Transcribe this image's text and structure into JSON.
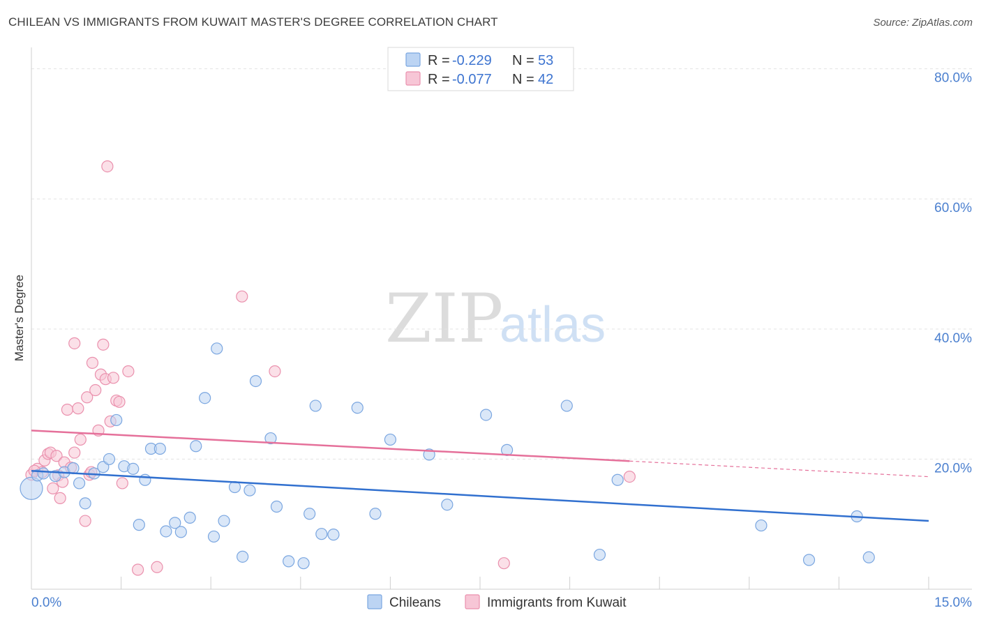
{
  "header": {
    "title": "CHILEAN VS IMMIGRANTS FROM KUWAIT MASTER'S DEGREE CORRELATION CHART",
    "source": "Source: ZipAtlas.com"
  },
  "watermark": {
    "zip": "ZIP",
    "atlas": "atlas"
  },
  "colors": {
    "blue_fill": "#bcd4f3",
    "blue_stroke": "#7aa6e0",
    "blue_line": "#3170cf",
    "pink_fill": "#f7c6d6",
    "pink_stroke": "#ea90ad",
    "pink_line": "#e5709a",
    "grid": "#e3e3e3",
    "axis_label": "#4a7fcf"
  },
  "legend": {
    "rows": [
      {
        "r_label": "R =",
        "r_value": "-0.229",
        "n_label": "N =",
        "n_value": "53"
      },
      {
        "r_label": "R =",
        "r_value": "-0.077",
        "n_label": "N =",
        "n_value": "42"
      }
    ]
  },
  "chart_data": {
    "type": "scatter",
    "title": "CHILEAN VS IMMIGRANTS FROM KUWAIT MASTER'S DEGREE CORRELATION CHART",
    "xlabel": "",
    "ylabel": "Master's Degree",
    "xlim": [
      0,
      15
    ],
    "ylim": [
      0,
      82
    ],
    "x_tick_labels": [
      "0.0%",
      "15.0%"
    ],
    "y_ticks": [
      20,
      40,
      60,
      80
    ],
    "y_tick_labels": [
      "20.0%",
      "40.0%",
      "60.0%",
      "80.0%"
    ],
    "grid": true,
    "series": [
      {
        "name": "Chileans",
        "R": -0.229,
        "N": 53,
        "trend": {
          "x": [
            0,
            15
          ],
          "y": [
            18.2,
            10.5
          ]
        },
        "points": [
          [
            0.0,
            15.5
          ],
          [
            0.1,
            17.5
          ],
          [
            0.2,
            17.8
          ],
          [
            0.4,
            17.4
          ],
          [
            0.55,
            18.0
          ],
          [
            0.7,
            18.6
          ],
          [
            0.8,
            16.3
          ],
          [
            0.9,
            13.2
          ],
          [
            1.05,
            17.8
          ],
          [
            1.2,
            18.8
          ],
          [
            1.3,
            20.0
          ],
          [
            1.42,
            26.0
          ],
          [
            1.55,
            18.9
          ],
          [
            1.7,
            18.5
          ],
          [
            1.8,
            9.9
          ],
          [
            1.9,
            16.8
          ],
          [
            2.0,
            21.6
          ],
          [
            2.15,
            21.6
          ],
          [
            2.25,
            8.9
          ],
          [
            2.4,
            10.2
          ],
          [
            2.5,
            8.8
          ],
          [
            2.65,
            11.0
          ],
          [
            2.75,
            22.0
          ],
          [
            2.9,
            29.4
          ],
          [
            3.05,
            8.1
          ],
          [
            3.1,
            37.0
          ],
          [
            3.22,
            10.5
          ],
          [
            3.4,
            15.7
          ],
          [
            3.53,
            5.0
          ],
          [
            3.65,
            15.2
          ],
          [
            3.75,
            32.0
          ],
          [
            4.0,
            23.2
          ],
          [
            4.1,
            12.7
          ],
          [
            4.3,
            4.3
          ],
          [
            4.55,
            4.0
          ],
          [
            4.65,
            11.6
          ],
          [
            4.75,
            28.2
          ],
          [
            4.85,
            8.5
          ],
          [
            5.05,
            8.4
          ],
          [
            5.45,
            27.9
          ],
          [
            5.75,
            11.6
          ],
          [
            6.0,
            23.0
          ],
          [
            6.65,
            20.7
          ],
          [
            6.95,
            13.0
          ],
          [
            7.6,
            26.8
          ],
          [
            7.95,
            21.4
          ],
          [
            8.95,
            28.2
          ],
          [
            9.5,
            5.3
          ],
          [
            9.8,
            16.8
          ],
          [
            12.2,
            9.8
          ],
          [
            13.0,
            4.5
          ],
          [
            13.8,
            11.2
          ],
          [
            14.0,
            4.9
          ]
        ]
      },
      {
        "name": "Immigrants from Kuwait",
        "R": -0.077,
        "N": 42,
        "trend": {
          "x": [
            0,
            10
          ],
          "y": [
            24.4,
            19.7
          ]
        },
        "trend_extended": {
          "x": [
            10,
            15
          ],
          "y": [
            19.7,
            17.3
          ]
        },
        "points": [
          [
            0.0,
            17.6
          ],
          [
            0.1,
            18.5
          ],
          [
            0.18,
            18.0
          ],
          [
            0.22,
            19.8
          ],
          [
            0.28,
            20.8
          ],
          [
            0.32,
            21.0
          ],
          [
            0.36,
            15.5
          ],
          [
            0.42,
            20.5
          ],
          [
            0.45,
            17.5
          ],
          [
            0.48,
            14.0
          ],
          [
            0.52,
            16.5
          ],
          [
            0.55,
            19.5
          ],
          [
            0.6,
            27.6
          ],
          [
            0.66,
            18.7
          ],
          [
            0.72,
            21.0
          ],
          [
            0.72,
            37.8
          ],
          [
            0.78,
            27.8
          ],
          [
            0.82,
            23.0
          ],
          [
            0.9,
            10.5
          ],
          [
            0.93,
            29.5
          ],
          [
            0.97,
            17.6
          ],
          [
            1.0,
            18.0
          ],
          [
            1.02,
            34.8
          ],
          [
            1.07,
            30.6
          ],
          [
            1.12,
            24.4
          ],
          [
            1.16,
            33.0
          ],
          [
            1.2,
            37.6
          ],
          [
            1.24,
            32.3
          ],
          [
            1.27,
            65.0
          ],
          [
            1.32,
            25.8
          ],
          [
            1.37,
            32.5
          ],
          [
            1.42,
            29.0
          ],
          [
            1.47,
            28.8
          ],
          [
            1.52,
            16.3
          ],
          [
            1.62,
            33.5
          ],
          [
            1.78,
            3.0
          ],
          [
            2.1,
            3.4
          ],
          [
            3.52,
            45.0
          ],
          [
            4.07,
            33.5
          ],
          [
            10.0,
            17.3
          ],
          [
            7.9,
            4.0
          ],
          [
            0.05,
            18.2
          ]
        ]
      }
    ]
  },
  "bottom_legend": [
    {
      "label": "Chileans"
    },
    {
      "label": "Immigrants from Kuwait"
    }
  ]
}
